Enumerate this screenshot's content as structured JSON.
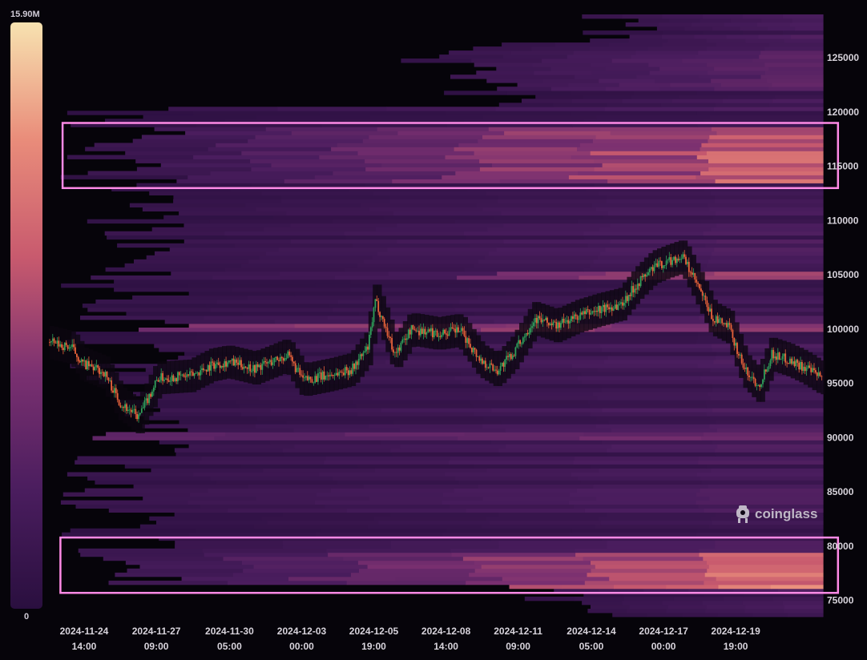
{
  "colorbar": {
    "max_label": "15.90M",
    "min_label": "0",
    "stops": [
      "#2a0f3f",
      "#4a1d5e",
      "#7a3070",
      "#c85a6e",
      "#e98c7a",
      "#f7e2b0"
    ]
  },
  "watermark": {
    "text": "coinglass",
    "icon": "coinglass-logo-icon"
  },
  "colors": {
    "background": "#06040a",
    "candle_up": "#2fa05a",
    "candle_down": "#e8633a",
    "highlight_box": "#ff8ae6"
  },
  "chart_data": {
    "type": "heatmap",
    "title": "",
    "xlabel": "",
    "ylabel": "",
    "x_tick_labels": [
      [
        "2024-11-24",
        "14:00"
      ],
      [
        "2024-11-27",
        "09:00"
      ],
      [
        "2024-11-30",
        "05:00"
      ],
      [
        "2024-12-03",
        "00:00"
      ],
      [
        "2024-12-05",
        "19:00"
      ],
      [
        "2024-12-08",
        "14:00"
      ],
      [
        "2024-12-11",
        "09:00"
      ],
      [
        "2024-12-14",
        "05:00"
      ],
      [
        "2024-12-17",
        "00:00"
      ],
      [
        "2024-12-19",
        "19:00"
      ]
    ],
    "x_ticks_hours": [
      0,
      67,
      135,
      202,
      269,
      336,
      403,
      471,
      538,
      605
    ],
    "x_range_hours": [
      -32,
      686
    ],
    "y_tick_labels": [
      "125000",
      "120000",
      "115000",
      "110000",
      "105000",
      "100000",
      "95000",
      "90000",
      "85000",
      "80000",
      "75000"
    ],
    "ylim": [
      73500,
      129000
    ],
    "color_scale": {
      "min": 0,
      "max": 15900000
    },
    "price_path_approx": [
      {
        "h": -32,
        "p": 98800
      },
      {
        "h": -10,
        "p": 98300
      },
      {
        "h": 0,
        "p": 96800
      },
      {
        "h": 20,
        "p": 96000
      },
      {
        "h": 35,
        "p": 93200
      },
      {
        "h": 52,
        "p": 91900
      },
      {
        "h": 70,
        "p": 95500
      },
      {
        "h": 100,
        "p": 95700
      },
      {
        "h": 120,
        "p": 96700
      },
      {
        "h": 135,
        "p": 97000
      },
      {
        "h": 160,
        "p": 96400
      },
      {
        "h": 190,
        "p": 97600
      },
      {
        "h": 205,
        "p": 95300
      },
      {
        "h": 230,
        "p": 95800
      },
      {
        "h": 250,
        "p": 96300
      },
      {
        "h": 265,
        "p": 98300
      },
      {
        "h": 272,
        "p": 102600
      },
      {
        "h": 280,
        "p": 100500
      },
      {
        "h": 290,
        "p": 97700
      },
      {
        "h": 305,
        "p": 100000
      },
      {
        "h": 330,
        "p": 99600
      },
      {
        "h": 350,
        "p": 99900
      },
      {
        "h": 370,
        "p": 97100
      },
      {
        "h": 385,
        "p": 96200
      },
      {
        "h": 400,
        "p": 97800
      },
      {
        "h": 420,
        "p": 101000
      },
      {
        "h": 440,
        "p": 100300
      },
      {
        "h": 460,
        "p": 101200
      },
      {
        "h": 480,
        "p": 101800
      },
      {
        "h": 500,
        "p": 102300
      },
      {
        "h": 515,
        "p": 104200
      },
      {
        "h": 530,
        "p": 105700
      },
      {
        "h": 545,
        "p": 106300
      },
      {
        "h": 557,
        "p": 106700
      },
      {
        "h": 570,
        "p": 104200
      },
      {
        "h": 585,
        "p": 101000
      },
      {
        "h": 600,
        "p": 100200
      },
      {
        "h": 615,
        "p": 96200
      },
      {
        "h": 628,
        "p": 94800
      },
      {
        "h": 640,
        "p": 97700
      },
      {
        "h": 655,
        "p": 97200
      },
      {
        "h": 670,
        "p": 96500
      },
      {
        "h": 686,
        "p": 95500
      }
    ],
    "liquidity_bands_approx": [
      {
        "low": 113500,
        "high": 118500,
        "start_h": -20,
        "peak": 0.8,
        "grow": 0.9
      },
      {
        "low": 76000,
        "high": 79500,
        "start_h": -20,
        "peak": 0.85,
        "grow": 0.9
      },
      {
        "low": 104500,
        "high": 105300,
        "start_h": 290,
        "peak": 0.65,
        "grow": 0.5
      },
      {
        "low": 99700,
        "high": 100500,
        "start_h": -20,
        "peak": 0.55,
        "grow": 0.2
      },
      {
        "low": 89800,
        "high": 90500,
        "start_h": -20,
        "peak": 0.4,
        "grow": 0.3
      },
      {
        "low": 122000,
        "high": 125500,
        "start_h": 270,
        "peak": 0.35,
        "grow": 0.8
      }
    ],
    "highlight_boxes": [
      {
        "y_low": 113000,
        "y_high": 119000,
        "x_start_h": -20,
        "x_end_h": 700
      },
      {
        "y_low": 75700,
        "y_high": 80800,
        "x_start_h": -22,
        "x_end_h": 700
      }
    ]
  }
}
